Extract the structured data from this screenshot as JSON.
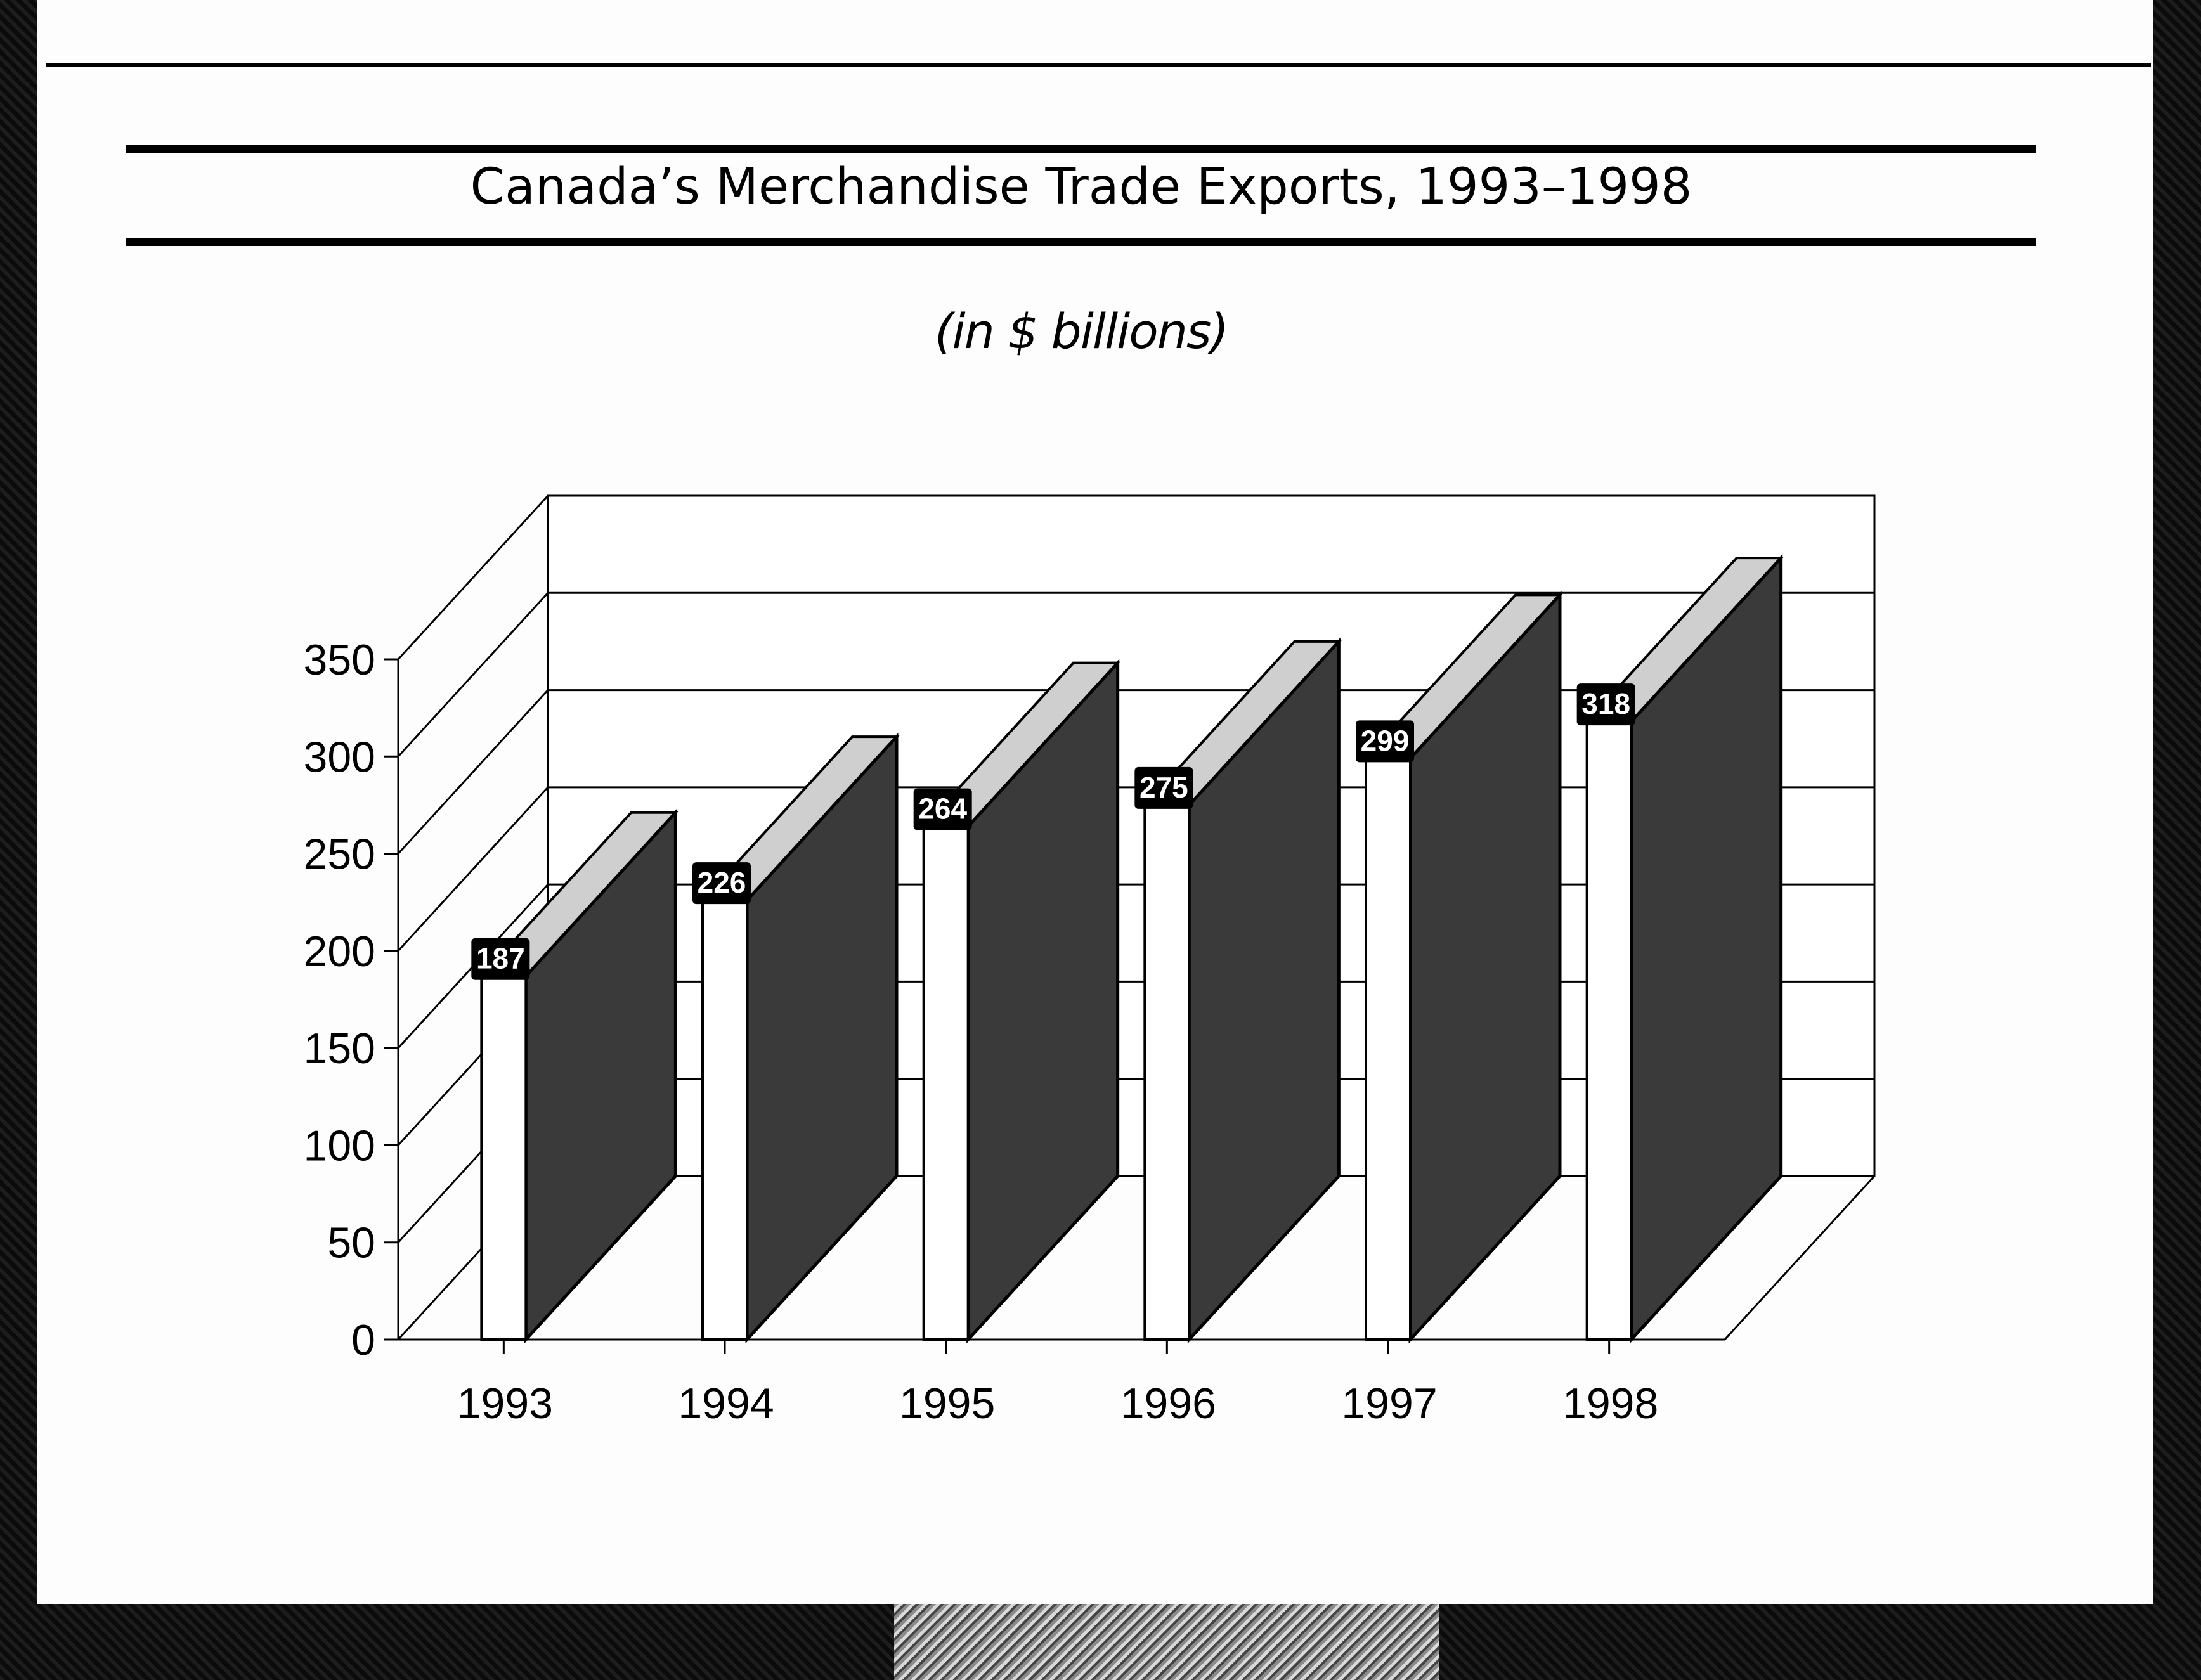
{
  "chart_data": {
    "type": "bar",
    "title": "Canada’s Merchandise Trade Exports, 1993–1998",
    "subtitle": "(in $ billions)",
    "categories": [
      "1993",
      "1994",
      "1995",
      "1996",
      "1997",
      "1998"
    ],
    "values": [
      187,
      226,
      264,
      275,
      299,
      318
    ],
    "data_labels": [
      "187",
      "226",
      "264",
      "275",
      "299",
      "318"
    ],
    "yticks": [
      "0",
      "50",
      "100",
      "150",
      "200",
      "250",
      "300",
      "350"
    ],
    "ylim": [
      0,
      350
    ],
    "xlabel": "",
    "ylabel": "",
    "grid": true,
    "style": "3d-bar",
    "colors": {
      "bar_front": "#ffffff",
      "bar_side": "#3a3a3a",
      "bar_top": "#cfcfcf",
      "label_bg": "#000000",
      "axis": "#000000"
    }
  }
}
